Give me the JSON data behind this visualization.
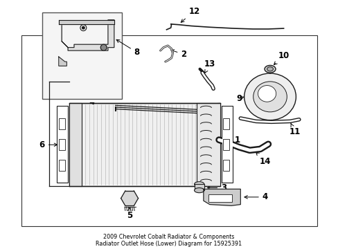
{
  "title": "2009 Chevrolet Cobalt Radiator & Components\nRadiator Outlet Hose (Lower) Diagram for 15925391",
  "bg_color": "#ffffff",
  "line_color": "#000000",
  "fig_width": 4.89,
  "fig_height": 3.6,
  "dpi": 100
}
